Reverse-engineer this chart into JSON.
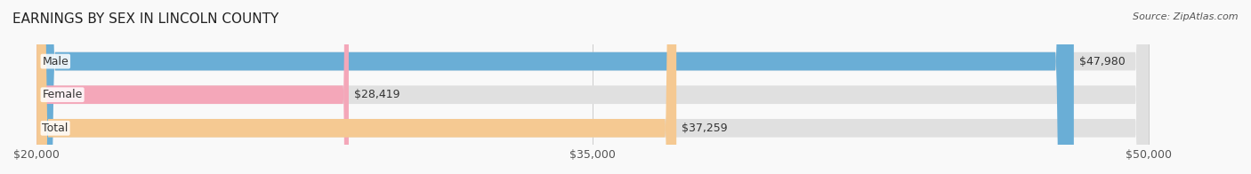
{
  "title": "EARNINGS BY SEX IN LINCOLN COUNTY",
  "source": "Source: ZipAtlas.com",
  "categories": [
    "Male",
    "Female",
    "Total"
  ],
  "values": [
    47980,
    28419,
    37259
  ],
  "bar_colors": [
    "#6aaed6",
    "#f4a7b9",
    "#f5c992"
  ],
  "bar_bg_color": "#e8e8e8",
  "value_labels": [
    "$47,980",
    "$28,419",
    "$37,259"
  ],
  "xmin": 20000,
  "xmax": 50000,
  "xticks": [
    20000,
    35000,
    50000
  ],
  "xtick_labels": [
    "$20,000",
    "$35,000",
    "$50,000"
  ],
  "title_fontsize": 11,
  "label_fontsize": 9,
  "source_fontsize": 8,
  "bar_height": 0.55,
  "background_color": "#f9f9f9"
}
